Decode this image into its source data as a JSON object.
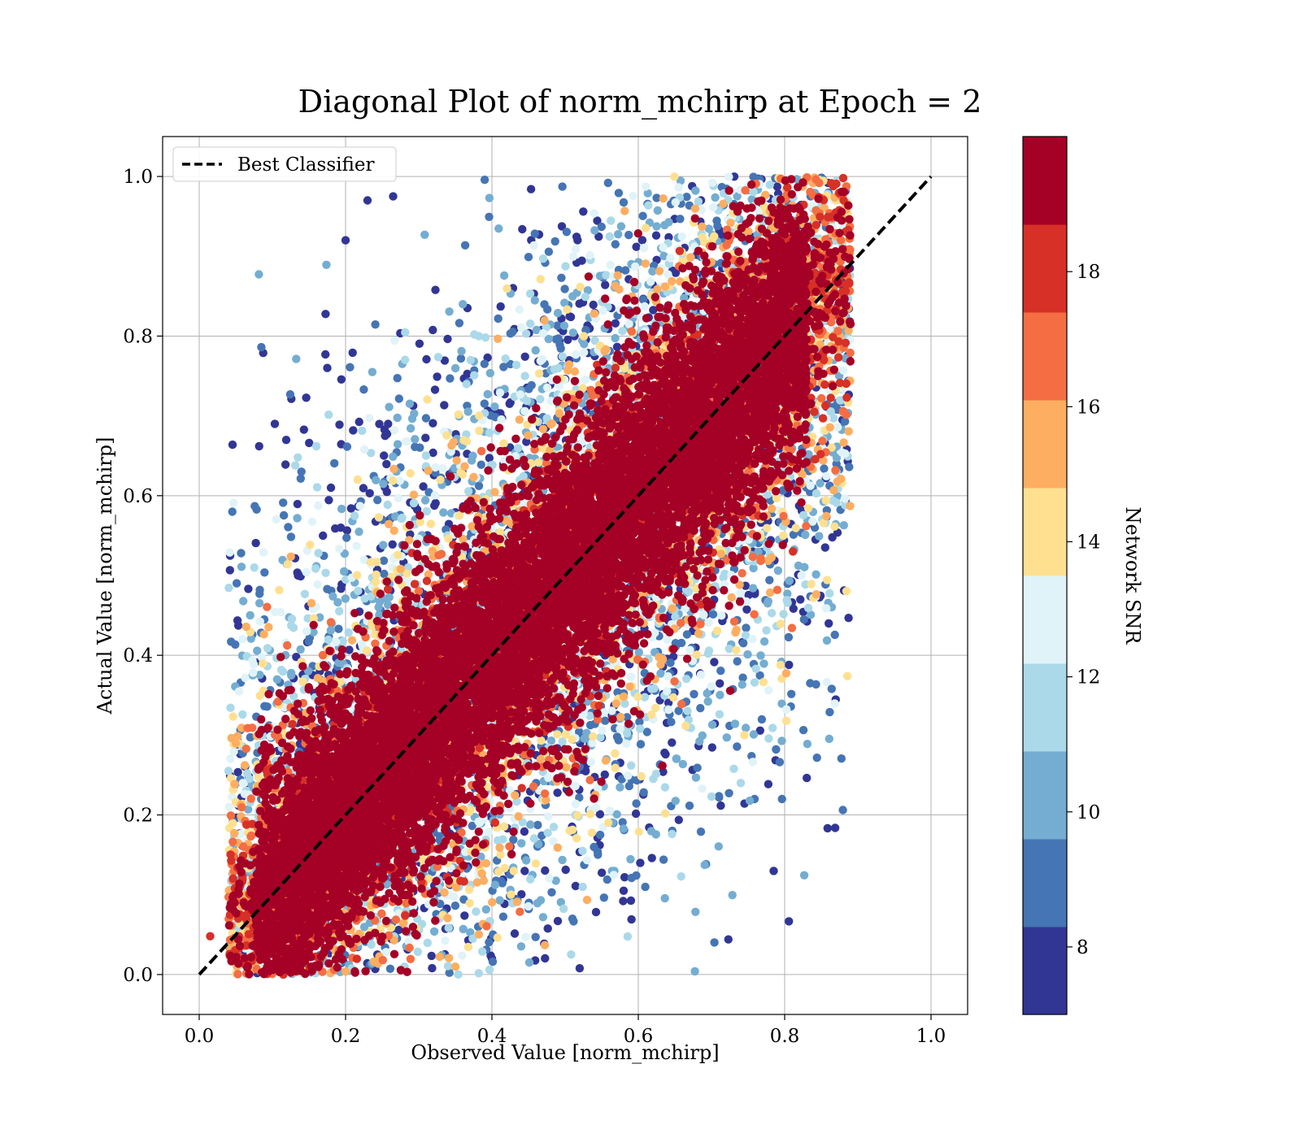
{
  "chart_data": {
    "type": "scatter",
    "title": "Diagonal Plot of norm_mchirp at Epoch = 2",
    "xlabel": "Observed Value [norm_mchirp]",
    "ylabel": "Actual Value [norm_mchirp]",
    "xlim": [
      -0.05,
      1.05
    ],
    "ylim": [
      -0.05,
      1.05
    ],
    "xticks": [
      "0.0",
      "0.2",
      "0.4",
      "0.6",
      "0.8",
      "1.0"
    ],
    "yticks": [
      "0.0",
      "0.2",
      "0.4",
      "0.6",
      "0.8",
      "1.0"
    ],
    "grid": true,
    "legend": {
      "position": "upper-left",
      "entries": [
        "Best Classifier"
      ]
    },
    "reference_line": {
      "name": "Best Classifier",
      "style": "dashed",
      "color": "#000000",
      "x": [
        0,
        1
      ],
      "y": [
        0,
        1
      ]
    },
    "colorbar": {
      "label": "Network SNR",
      "range": [
        7,
        20
      ],
      "ticks": [
        "8",
        "10",
        "12",
        "14",
        "16",
        "18"
      ],
      "colors": [
        "#313695",
        "#4575b4",
        "#74add1",
        "#abd9e9",
        "#e0f3f8",
        "#fee090",
        "#fdae61",
        "#f46d43",
        "#d73027",
        "#a50026"
      ]
    },
    "point_model": {
      "description": "dense cloud of predictions around y = x",
      "x_range": [
        0.04,
        0.89
      ],
      "y_range": [
        0.0,
        1.0
      ],
      "core_snr": 20,
      "low_snr_spread_wider": true
    },
    "outlier_points": [
      {
        "x": 0.23,
        "y": 0.97,
        "snr": 7.5
      },
      {
        "x": 0.265,
        "y": 0.975,
        "snr": 7.5
      },
      {
        "x": 0.2,
        "y": 0.92,
        "snr": 7.5
      },
      {
        "x": 0.175,
        "y": 0.76,
        "snr": 7.5
      },
      {
        "x": 0.135,
        "y": 0.5,
        "snr": 7.5
      },
      {
        "x": 0.18,
        "y": 0.61,
        "snr": 7.5
      },
      {
        "x": 0.04,
        "y": 0.255,
        "snr": 11
      },
      {
        "x": 0.74,
        "y": 0.24,
        "snr": 11
      },
      {
        "x": 0.7,
        "y": 0.223,
        "snr": 12
      },
      {
        "x": 0.745,
        "y": 0.3,
        "snr": 14.5
      },
      {
        "x": 0.79,
        "y": 0.482,
        "snr": 17
      },
      {
        "x": 0.89,
        "y": 0.815,
        "snr": 19.5
      },
      {
        "x": 0.87,
        "y": 0.87,
        "snr": 17.5
      },
      {
        "x": 0.88,
        "y": 0.998,
        "snr": 17.5
      },
      {
        "x": 0.58,
        "y": 0.105,
        "snr": 7.5
      },
      {
        "x": 0.51,
        "y": 0.07,
        "snr": 9
      },
      {
        "x": 0.49,
        "y": 0.067,
        "snr": 7.5
      },
      {
        "x": 0.115,
        "y": 0.0,
        "snr": 18.5
      },
      {
        "x": 0.4,
        "y": 0.02,
        "snr": 8
      },
      {
        "x": 0.015,
        "y": 0.048,
        "snr": 18.5
      }
    ]
  }
}
